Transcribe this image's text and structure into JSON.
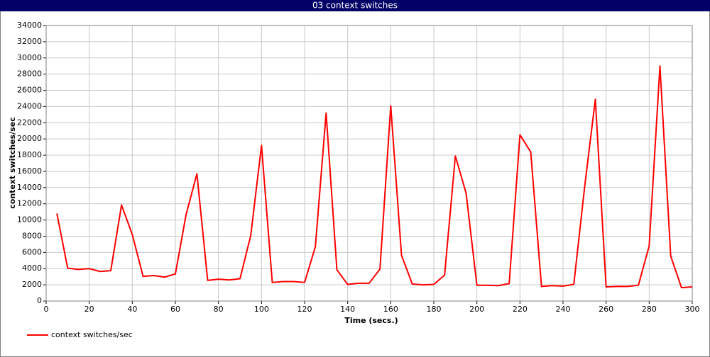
{
  "chart_data": {
    "type": "line",
    "title": "03 context switches",
    "x_label": "Time (secs.)",
    "y_label": "context switches/sec",
    "x": [
      5,
      10,
      15,
      20,
      25,
      30,
      35,
      40,
      45,
      50,
      55,
      60,
      65,
      70,
      75,
      80,
      85,
      90,
      95,
      100,
      105,
      110,
      115,
      120,
      125,
      130,
      135,
      140,
      145,
      150,
      155,
      160,
      165,
      170,
      175,
      180,
      185,
      190,
      195,
      200,
      205,
      210,
      215,
      220,
      225,
      230,
      235,
      240,
      245,
      250,
      255,
      260,
      265,
      270,
      275,
      280,
      285,
      290,
      295,
      300
    ],
    "series": [
      {
        "name": "context switches/sec",
        "color": "#ff0000",
        "values": [
          10800,
          4050,
          3900,
          4000,
          3650,
          3750,
          11850,
          8200,
          3050,
          3150,
          2950,
          3350,
          10700,
          15700,
          2550,
          2700,
          2600,
          2750,
          8100,
          19200,
          2300,
          2400,
          2400,
          2300,
          6700,
          23200,
          3850,
          2050,
          2200,
          2200,
          3950,
          24100,
          5650,
          2100,
          2000,
          2050,
          3200,
          17900,
          13300,
          1950,
          1950,
          1900,
          2150,
          20500,
          18400,
          1800,
          1900,
          1850,
          2050,
          14000,
          24900,
          1750,
          1800,
          1800,
          1950,
          6800,
          29000,
          5550,
          1650,
          1750
        ]
      }
    ],
    "xlim": [
      0,
      300
    ],
    "ylim": [
      0,
      34000
    ],
    "xticks": [
      0,
      20,
      40,
      60,
      80,
      100,
      120,
      140,
      160,
      180,
      200,
      220,
      240,
      260,
      280,
      300
    ],
    "yticks": [
      0,
      2000,
      4000,
      6000,
      8000,
      10000,
      12000,
      14000,
      16000,
      18000,
      20000,
      22000,
      24000,
      26000,
      28000,
      30000,
      32000,
      34000
    ],
    "grid": true
  }
}
